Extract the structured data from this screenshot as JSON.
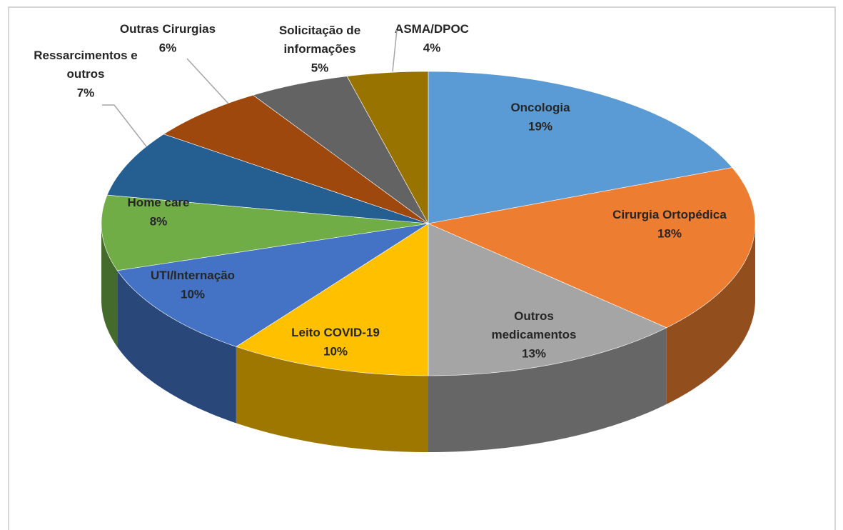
{
  "chart_data": {
    "type": "pie3d",
    "categories": [
      "Oncologia",
      "Cirurgia Ortopédica",
      "Outros medicamentos",
      "Leito COVID-19",
      "UTI/Internação",
      "Home care",
      "Ressarcimentos e outros",
      "Outras Cirurgias",
      "Solicitação de informações",
      "ASMA/DPOC"
    ],
    "values": [
      19,
      18,
      13,
      10,
      10,
      8,
      7,
      6,
      5,
      4
    ],
    "value_labels": [
      "19%",
      "18%",
      "13%",
      "10%",
      "10%",
      "8%",
      "7%",
      "6%",
      "5%",
      "4%"
    ],
    "colors": [
      "#5b9bd5",
      "#ed7d31",
      "#a5a5a5",
      "#ffc000",
      "#4472c4",
      "#70ad47",
      "#255e91",
      "#9e480e",
      "#636363",
      "#997300"
    ]
  }
}
